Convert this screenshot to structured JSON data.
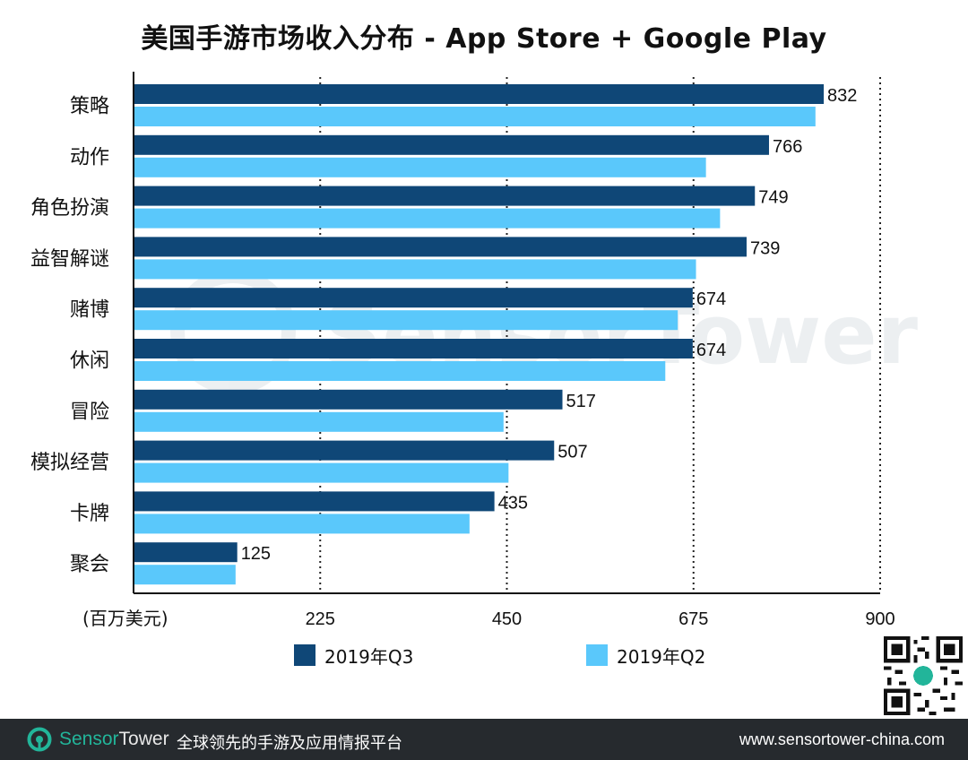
{
  "chart_data": {
    "type": "bar",
    "orientation": "horizontal",
    "title": "美国手游市场收入分布 - App Store + Google Play",
    "unit_label": "(百万美元)",
    "categories": [
      "策略",
      "动作",
      "角色扮演",
      "益智解谜",
      "赌博",
      "休闲",
      "冒险",
      "模拟经营",
      "卡牌",
      "聚会"
    ],
    "series": [
      {
        "name": "2019年Q3",
        "color": "#0f4777",
        "values": [
          832,
          766,
          749,
          739,
          674,
          674,
          517,
          507,
          435,
          125
        ],
        "show_labels": true
      },
      {
        "name": "2019年Q2",
        "color": "#5ac8fb",
        "values": [
          822,
          690,
          707,
          678,
          656,
          641,
          446,
          452,
          405,
          123
        ],
        "show_labels": false
      }
    ],
    "xlim": [
      0,
      900
    ],
    "xticks": [
      225,
      450,
      675,
      900
    ],
    "gridlines": "dotted vertical at ticks"
  },
  "watermark": {
    "text": "SensorTower"
  },
  "footer": {
    "brand_part1": "Sensor",
    "brand_part2": "Tower",
    "tagline": "全球领先的手游及应用情报平台",
    "website": "www.sensortower-china.com"
  }
}
